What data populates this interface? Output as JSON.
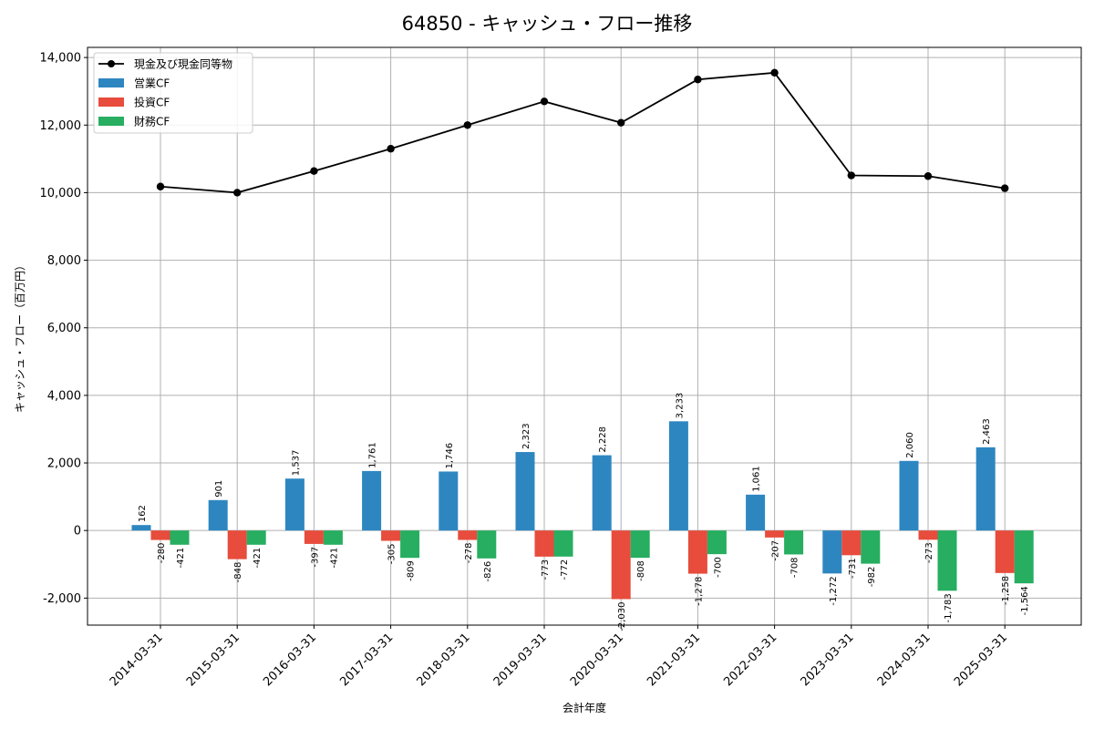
{
  "chart_data": {
    "type": "bar+line",
    "title": "64850 - キャッシュ・フロー推移",
    "xlabel": "会計年度",
    "ylabel": "キャッシュ・フロー（百万円）",
    "categories": [
      "2014-03-31",
      "2015-03-31",
      "2016-03-31",
      "2017-03-31",
      "2018-03-31",
      "2019-03-31",
      "2020-03-31",
      "2021-03-31",
      "2022-03-31",
      "2023-03-31",
      "2024-03-31",
      "2025-03-31"
    ],
    "ylim": [
      -2800,
      14300
    ],
    "yticks": [
      -2000,
      0,
      2000,
      4000,
      6000,
      8000,
      10000,
      12000,
      14000
    ],
    "ytick_labels": [
      "-2,000",
      "0",
      "2,000",
      "4,000",
      "6,000",
      "8,000",
      "10,000",
      "12,000",
      "14,000"
    ],
    "grid": true,
    "legend_position": "top-left",
    "line_series": {
      "name": "現金及び現金同等物",
      "color": "#000000",
      "values": [
        10180,
        10000,
        10640,
        11300,
        12000,
        12700,
        12070,
        13350,
        13550,
        10510,
        10490,
        10130
      ]
    },
    "bar_series": [
      {
        "name": "営業CF",
        "color": "#2e86c1",
        "values": [
          162,
          901,
          1537,
          1761,
          1746,
          2323,
          2228,
          3233,
          1061,
          -1272,
          2060,
          2463
        ],
        "labels": [
          "162",
          "901",
          "1,537",
          "1,761",
          "1,746",
          "2,323",
          "2,228",
          "3,233",
          "1,061",
          "-1,272",
          "2,060",
          "2,463"
        ]
      },
      {
        "name": "投資CF",
        "color": "#e74c3c",
        "values": [
          -280,
          -848,
          -397,
          -305,
          -278,
          -773,
          -2030,
          -1278,
          -207,
          -731,
          -273,
          -1258
        ],
        "labels": [
          "-280",
          "-848",
          "-397",
          "-305",
          "-278",
          "-773",
          "-2,030",
          "-1,278",
          "-207",
          "-731",
          "-273",
          "-1,258"
        ]
      },
      {
        "name": "財務CF",
        "color": "#27ae60",
        "values": [
          -421,
          -421,
          -421,
          -809,
          -826,
          -772,
          -808,
          -700,
          -708,
          -982,
          -1783,
          -1564
        ],
        "labels": [
          "-421",
          "-421",
          "-421",
          "-809",
          "-826",
          "-772",
          "-808",
          "-700",
          "-708",
          "-982",
          "-1,783",
          "-1,564"
        ]
      }
    ]
  }
}
